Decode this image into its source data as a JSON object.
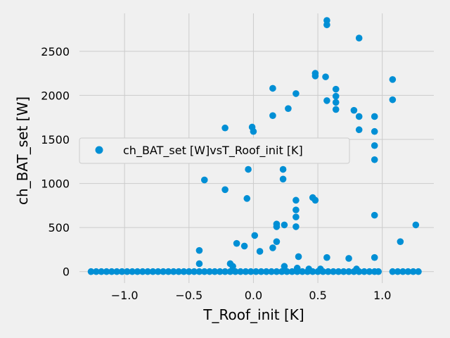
{
  "chart_data": {
    "type": "scatter",
    "xlabel": "T_Roof_init [K]",
    "ylabel": "ch_BAT_set [W]",
    "xlim": [
      -1.35,
      1.4
    ],
    "ylim": [
      -130,
      2930
    ],
    "xticks": [
      -1.0,
      -0.5,
      0.0,
      0.5,
      1.0
    ],
    "xtick_labels": [
      "−1.0",
      "−0.5",
      "0.0",
      "0.5",
      "1.0"
    ],
    "yticks": [
      0,
      500,
      1000,
      1500,
      2000,
      2500
    ],
    "ytick_labels": [
      "0",
      "500",
      "1000",
      "1500",
      "2000",
      "2500"
    ],
    "grid": true,
    "legend_position": "center-left",
    "colors": {
      "series": "#008fd5",
      "background": "#f0f0f0",
      "grid": "#cbcbcb"
    },
    "series": [
      {
        "name": "ch_BAT_set [W]vsT_Roof_init [K]",
        "points": [
          [
            -1.26,
            0
          ],
          [
            -1.22,
            0
          ],
          [
            -1.18,
            0
          ],
          [
            -1.14,
            0
          ],
          [
            -1.1,
            0
          ],
          [
            -1.06,
            0
          ],
          [
            -1.02,
            0
          ],
          [
            -0.98,
            0
          ],
          [
            -0.94,
            0
          ],
          [
            -0.9,
            0
          ],
          [
            -0.86,
            0
          ],
          [
            -0.82,
            0
          ],
          [
            -0.78,
            0
          ],
          [
            -0.74,
            0
          ],
          [
            -0.7,
            0
          ],
          [
            -0.66,
            0
          ],
          [
            -0.62,
            0
          ],
          [
            -0.58,
            0
          ],
          [
            -0.54,
            0
          ],
          [
            -0.5,
            0
          ],
          [
            -0.46,
            0
          ],
          [
            -0.42,
            0
          ],
          [
            -0.38,
            0
          ],
          [
            -0.34,
            0
          ],
          [
            -0.3,
            0
          ],
          [
            -0.26,
            0
          ],
          [
            -0.22,
            0
          ],
          [
            -0.18,
            0
          ],
          [
            -0.14,
            0
          ],
          [
            -0.1,
            0
          ],
          [
            -0.06,
            0
          ],
          [
            -0.02,
            0
          ],
          [
            0.02,
            0
          ],
          [
            0.06,
            0
          ],
          [
            0.1,
            0
          ],
          [
            0.14,
            0
          ],
          [
            0.18,
            0
          ],
          [
            0.22,
            0
          ],
          [
            0.26,
            0
          ],
          [
            0.3,
            0
          ],
          [
            0.34,
            0
          ],
          [
            0.38,
            0
          ],
          [
            0.42,
            0
          ],
          [
            0.46,
            0
          ],
          [
            0.5,
            0
          ],
          [
            0.54,
            0
          ],
          [
            0.58,
            0
          ],
          [
            0.62,
            0
          ],
          [
            0.66,
            0
          ],
          [
            0.7,
            0
          ],
          [
            0.74,
            0
          ],
          [
            0.78,
            0
          ],
          [
            0.82,
            0
          ],
          [
            0.86,
            0
          ],
          [
            0.9,
            0
          ],
          [
            0.94,
            0
          ],
          [
            0.97,
            0
          ],
          [
            1.08,
            0
          ],
          [
            1.12,
            0
          ],
          [
            1.16,
            0
          ],
          [
            1.2,
            0
          ],
          [
            1.24,
            0
          ],
          [
            1.28,
            0
          ],
          [
            0.57,
            2850
          ],
          [
            0.57,
            2800
          ],
          [
            0.82,
            2650
          ],
          [
            0.48,
            2250
          ],
          [
            0.48,
            2220
          ],
          [
            0.56,
            2210
          ],
          [
            0.15,
            2080
          ],
          [
            0.33,
            2020
          ],
          [
            0.64,
            2070
          ],
          [
            0.64,
            1990
          ],
          [
            0.64,
            1920
          ],
          [
            0.57,
            1940
          ],
          [
            0.64,
            1840
          ],
          [
            0.27,
            1850
          ],
          [
            0.78,
            1830
          ],
          [
            0.82,
            1760
          ],
          [
            0.94,
            1760
          ],
          [
            0.15,
            1770
          ],
          [
            -0.01,
            1640
          ],
          [
            0.0,
            1590
          ],
          [
            -0.22,
            1630
          ],
          [
            0.82,
            1610
          ],
          [
            0.94,
            1590
          ],
          [
            0.94,
            1430
          ],
          [
            1.08,
            2180
          ],
          [
            1.08,
            1950
          ],
          [
            0.94,
            1270
          ],
          [
            -0.04,
            1160
          ],
          [
            0.23,
            1160
          ],
          [
            -0.38,
            1040
          ],
          [
            0.23,
            1050
          ],
          [
            -0.22,
            930
          ],
          [
            -0.05,
            830
          ],
          [
            0.46,
            840
          ],
          [
            0.48,
            810
          ],
          [
            0.33,
            810
          ],
          [
            0.33,
            700
          ],
          [
            0.33,
            620
          ],
          [
            0.94,
            640
          ],
          [
            0.18,
            540
          ],
          [
            0.18,
            510
          ],
          [
            0.24,
            530
          ],
          [
            0.33,
            510
          ],
          [
            1.26,
            530
          ],
          [
            0.01,
            410
          ],
          [
            -0.13,
            320
          ],
          [
            -0.07,
            290
          ],
          [
            0.18,
            340
          ],
          [
            1.14,
            340
          ],
          [
            0.05,
            230
          ],
          [
            0.15,
            270
          ],
          [
            -0.42,
            240
          ],
          [
            0.35,
            170
          ],
          [
            0.57,
            160
          ],
          [
            0.74,
            150
          ],
          [
            0.94,
            160
          ],
          [
            -0.42,
            90
          ],
          [
            -0.18,
            90
          ],
          [
            -0.16,
            60
          ],
          [
            0.24,
            60
          ],
          [
            0.34,
            40
          ],
          [
            0.43,
            30
          ],
          [
            0.52,
            30
          ],
          [
            0.8,
            30
          ]
        ]
      }
    ]
  }
}
